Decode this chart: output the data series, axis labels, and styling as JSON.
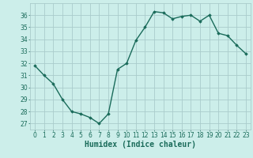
{
  "x": [
    0,
    1,
    2,
    3,
    4,
    5,
    6,
    7,
    8,
    9,
    10,
    11,
    12,
    13,
    14,
    15,
    16,
    17,
    18,
    19,
    20,
    21,
    22,
    23
  ],
  "y": [
    31.8,
    31.0,
    30.3,
    29.0,
    28.0,
    27.8,
    27.5,
    27.0,
    27.8,
    31.5,
    32.0,
    33.9,
    35.0,
    36.3,
    36.2,
    35.7,
    35.9,
    36.0,
    35.5,
    36.0,
    34.5,
    34.3,
    33.5,
    32.8
  ],
  "line_color": "#1a6b5a",
  "marker": "D",
  "markersize": 1.8,
  "linewidth": 1.0,
  "bg_color": "#cceeea",
  "grid_color": "#aacccc",
  "xlabel": "Humidex (Indice chaleur)",
  "ylabel": "",
  "ylim": [
    26.5,
    37.0
  ],
  "xlim": [
    -0.5,
    23.5
  ],
  "yticks": [
    27,
    28,
    29,
    30,
    31,
    32,
    33,
    34,
    35,
    36
  ],
  "xticks": [
    0,
    1,
    2,
    3,
    4,
    5,
    6,
    7,
    8,
    9,
    10,
    11,
    12,
    13,
    14,
    15,
    16,
    17,
    18,
    19,
    20,
    21,
    22,
    23
  ],
  "tick_fontsize": 5.5,
  "xlabel_fontsize": 7.0,
  "tick_color": "#1a6b5a"
}
